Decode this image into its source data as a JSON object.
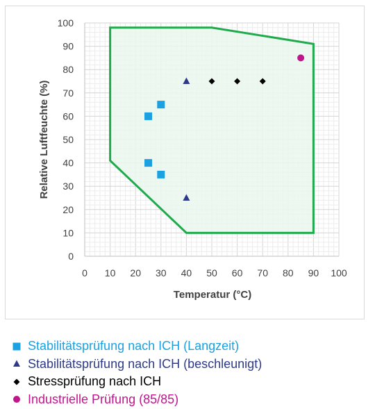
{
  "chart_data": {
    "type": "scatter",
    "title": "",
    "xlabel": "Temperatur (°C)",
    "ylabel": "Relative Luftfeuchte (%)",
    "xlim": [
      0,
      100
    ],
    "ylim": [
      0,
      100
    ],
    "xticks": [
      0,
      10,
      20,
      30,
      40,
      50,
      60,
      70,
      80,
      90,
      100
    ],
    "yticks": [
      0,
      10,
      20,
      30,
      40,
      50,
      60,
      70,
      80,
      90,
      100
    ],
    "grid": true,
    "legend_position": "bottom",
    "region": {
      "name": "",
      "outline_color": "#1faa4b",
      "fill_color": "#eaf7ef",
      "polygon": [
        [
          10,
          98
        ],
        [
          50,
          98
        ],
        [
          90,
          91
        ],
        [
          90,
          10
        ],
        [
          40,
          10
        ],
        [
          10,
          41
        ]
      ]
    },
    "series": [
      {
        "name": "Stabilitätsprüfung nach ICH (Langzeit)",
        "marker": "square",
        "color": "#1ba1e2",
        "points": [
          [
            25,
            60
          ],
          [
            30,
            65
          ],
          [
            25,
            40
          ],
          [
            30,
            35
          ]
        ]
      },
      {
        "name": "Stabilitätsprüfung nach ICH (beschleunigt)",
        "marker": "triangle",
        "color": "#2e3a87",
        "points": [
          [
            40,
            75
          ],
          [
            40,
            25
          ]
        ]
      },
      {
        "name": "Stressprüfung nach ICH",
        "marker": "diamond",
        "color": "#000000",
        "points": [
          [
            50,
            75
          ],
          [
            60,
            75
          ],
          [
            70,
            75
          ]
        ]
      },
      {
        "name": "Industrielle Prüfung (85/85)",
        "marker": "circle",
        "color": "#c0158c",
        "points": [
          [
            85,
            85
          ]
        ]
      }
    ]
  }
}
